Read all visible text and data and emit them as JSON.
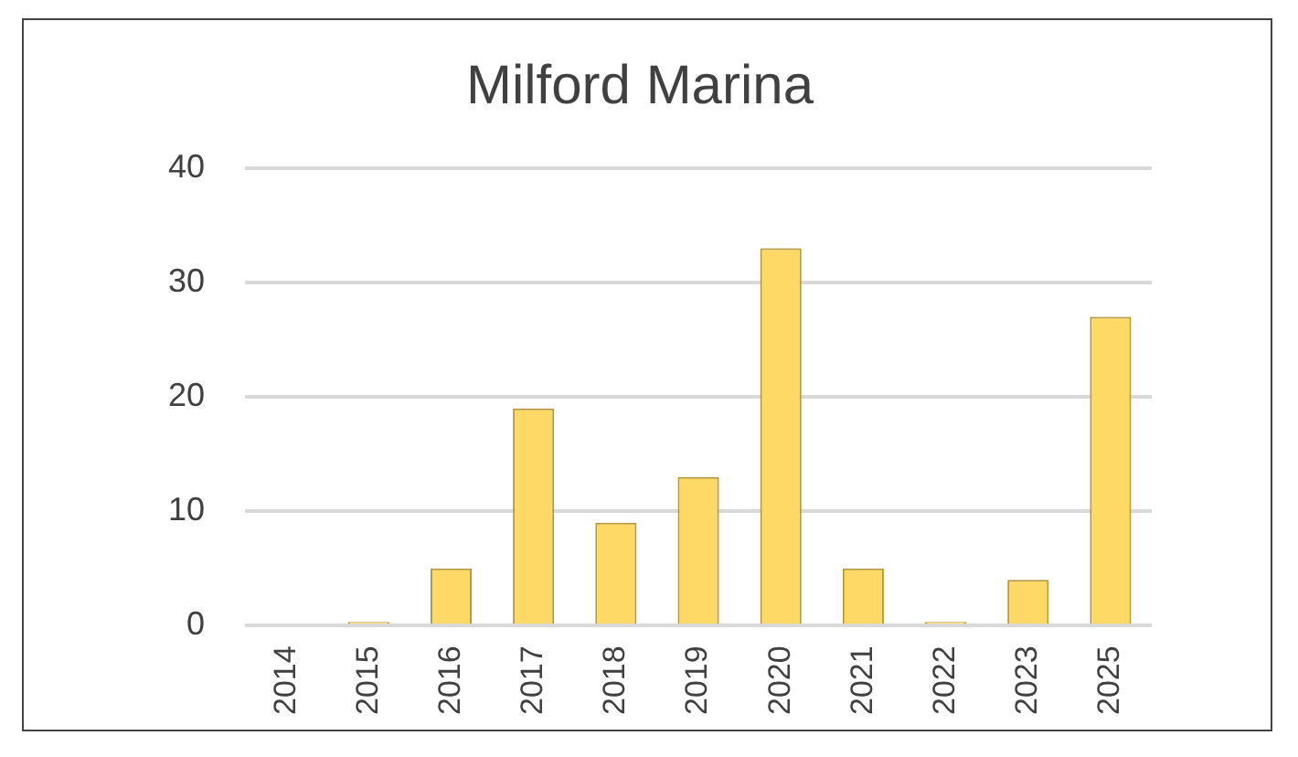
{
  "chart_data": {
    "type": "bar",
    "title": "Milford Marina",
    "categories": [
      "2014",
      "2015",
      "2016",
      "2017",
      "2018",
      "2019",
      "2020",
      "2021",
      "2022",
      "2023",
      "2025"
    ],
    "values": [
      null,
      0,
      5,
      19,
      9,
      13,
      33,
      5,
      0,
      4,
      27
    ],
    "color": "#ffd966",
    "ylim": [
      0,
      40
    ],
    "yticks": [
      0,
      10,
      20,
      30,
      40
    ],
    "grid": "y",
    "legend": false
  }
}
